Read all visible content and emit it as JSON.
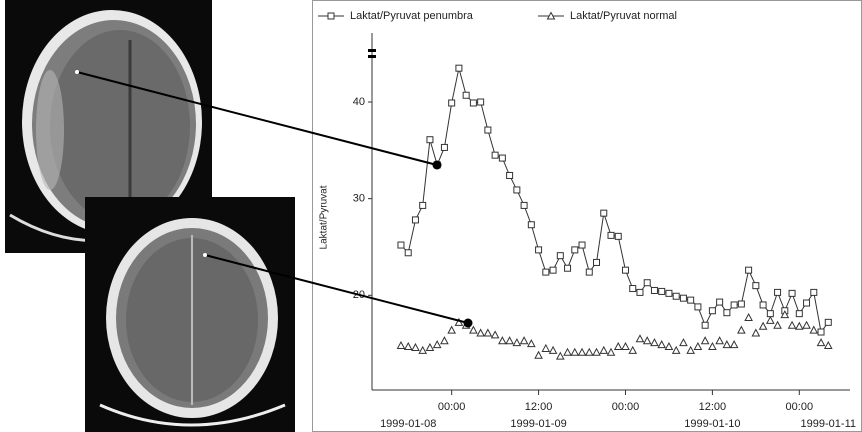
{
  "chart_data": {
    "type": "line",
    "y_label": "Laktat/Pyruvat",
    "x": [
      "1999-01-08 17:00",
      "1999-01-08 18:00",
      "1999-01-08 19:00",
      "1999-01-08 20:00",
      "1999-01-08 21:00",
      "1999-01-08 22:00",
      "1999-01-08 23:00",
      "1999-01-09 00:00",
      "1999-01-09 01:00",
      "1999-01-09 02:00",
      "1999-01-09 03:00",
      "1999-01-09 04:00",
      "1999-01-09 05:00",
      "1999-01-09 06:00",
      "1999-01-09 07:00",
      "1999-01-09 08:00",
      "1999-01-09 09:00",
      "1999-01-09 10:00",
      "1999-01-09 11:00",
      "1999-01-09 12:00",
      "1999-01-09 13:00",
      "1999-01-09 14:00",
      "1999-01-09 15:00",
      "1999-01-09 16:00",
      "1999-01-09 17:00",
      "1999-01-09 18:00",
      "1999-01-09 19:00",
      "1999-01-09 20:00",
      "1999-01-09 21:00",
      "1999-01-09 22:00",
      "1999-01-09 23:00",
      "1999-01-10 00:00",
      "1999-01-10 01:00",
      "1999-01-10 02:00",
      "1999-01-10 03:00",
      "1999-01-10 04:00",
      "1999-01-10 05:00",
      "1999-01-10 06:00",
      "1999-01-10 07:00",
      "1999-01-10 08:00",
      "1999-01-10 09:00",
      "1999-01-10 10:00",
      "1999-01-10 11:00",
      "1999-01-10 12:00",
      "1999-01-10 13:00",
      "1999-01-10 14:00",
      "1999-01-10 15:00",
      "1999-01-10 16:00",
      "1999-01-10 17:00",
      "1999-01-10 18:00",
      "1999-01-10 19:00",
      "1999-01-10 20:00",
      "1999-01-10 21:00",
      "1999-01-10 22:00",
      "1999-01-10 23:00",
      "1999-01-11 00:00",
      "1999-01-11 01:00",
      "1999-01-11 02:00",
      "1999-01-11 03:00",
      "1999-01-11 04:00"
    ],
    "series": [
      {
        "name": "Laktat/Pyruvat penumbra",
        "marker": "square",
        "color": "#333333",
        "values": [
          25.2,
          24.4,
          27.8,
          29.3,
          36.1,
          33.5,
          35.3,
          39.9,
          43.5,
          40.7,
          39.9,
          40.0,
          37.1,
          34.5,
          34.2,
          32.4,
          30.9,
          29.3,
          27.3,
          24.7,
          22.4,
          22.6,
          24.1,
          22.8,
          24.7,
          25.2,
          22.4,
          23.4,
          28.5,
          26.2,
          26.1,
          22.6,
          20.7,
          20.3,
          21.3,
          20.5,
          20.4,
          20.2,
          19.9,
          19.7,
          19.5,
          18.8,
          16.9,
          18.4,
          19.3,
          18.2,
          19.0,
          19.1,
          22.6,
          21.0,
          19.0,
          18.1,
          20.3,
          18.4,
          20.2,
          18.1,
          19.2,
          20.3,
          16.2,
          17.2
        ]
      },
      {
        "name": "Laktat/Pyruvat normal",
        "marker": "triangle",
        "color": "#333333",
        "values": [
          14.8,
          14.7,
          14.6,
          14.3,
          14.6,
          14.9,
          15.3,
          16.4,
          17.2,
          16.9,
          16.4,
          16.1,
          16.1,
          15.9,
          15.3,
          15.3,
          15.1,
          15.3,
          15.0,
          13.8,
          14.5,
          14.3,
          13.7,
          14.1,
          14.1,
          14.1,
          14.1,
          14.1,
          14.3,
          14.1,
          14.7,
          14.7,
          14.3,
          15.5,
          15.3,
          15.1,
          14.9,
          14.7,
          14.3,
          15.1,
          14.3,
          14.7,
          15.3,
          14.7,
          15.3,
          14.9,
          14.9,
          16.4,
          17.7,
          16.1,
          16.8,
          17.4,
          16.9,
          18.0,
          16.9,
          16.8,
          16.9,
          16.4,
          15.1,
          14.8
        ]
      }
    ],
    "xlim": [
      "1999-01-08 13:00",
      "1999-01-11 07:00"
    ],
    "xticks": [
      {
        "value": "1999-01-09 00:00",
        "label": "00:00"
      },
      {
        "value": "1999-01-09 12:00",
        "label": "12:00"
      },
      {
        "value": "1999-01-10 00:00",
        "label": "00:00"
      },
      {
        "value": "1999-01-10 12:00",
        "label": "12:00"
      },
      {
        "value": "1999-01-11 00:00",
        "label": "00:00"
      }
    ],
    "xticks_dates": [
      {
        "value": "1999-01-08 18:00",
        "label": "1999-01-08"
      },
      {
        "value": "1999-01-09 12:00",
        "label": "1999-01-09"
      },
      {
        "value": "1999-01-10 12:00",
        "label": "1999-01-10"
      },
      {
        "value": "1999-01-11 04:00",
        "label": "1999-01-11"
      }
    ],
    "ylim": [
      10.2,
      45.9
    ],
    "yticks": [
      20,
      30,
      40
    ],
    "legend": "top"
  }
}
